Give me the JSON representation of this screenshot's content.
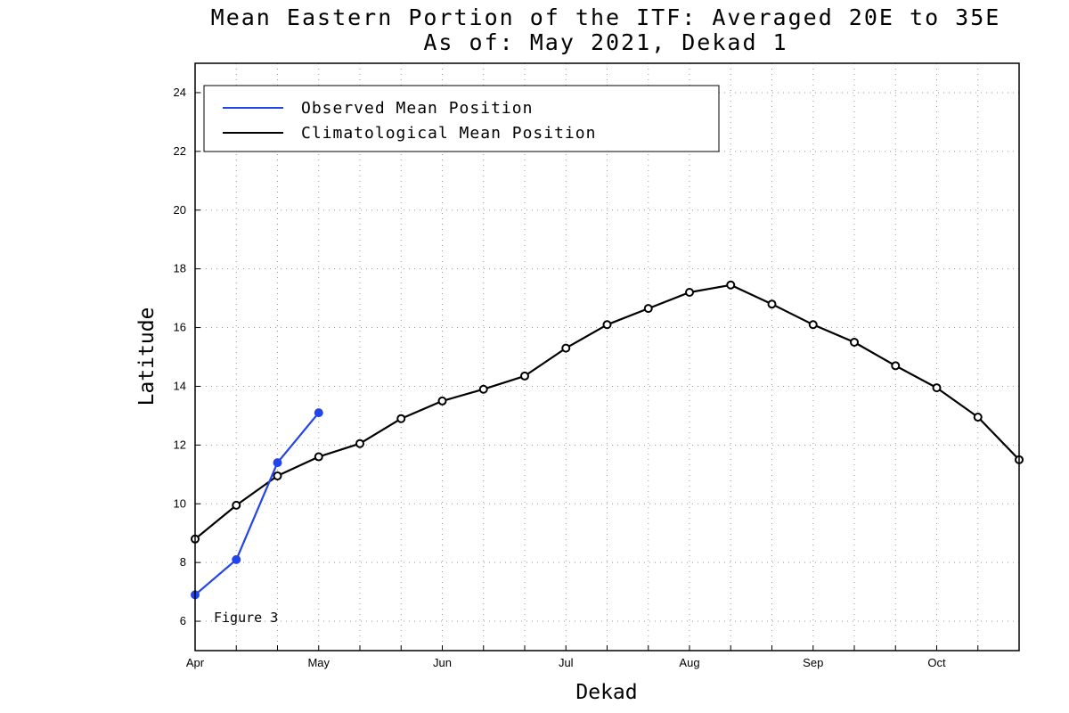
{
  "chart_data": {
    "type": "line",
    "title": "Mean Eastern Portion of the ITF: Averaged 20E to 35E",
    "subtitle": "As of: May 2021, Dekad 1",
    "xlabel": "Dekad",
    "ylabel": "Latitude",
    "annotation": "Figure 3",
    "x_tick_labels": [
      "Apr",
      "May",
      "Jun",
      "Jul",
      "Aug",
      "Sep",
      "Oct"
    ],
    "x_tick_label_index": [
      0,
      3,
      6,
      9,
      12,
      15,
      18
    ],
    "xlim": [
      0,
      20
    ],
    "ylim": [
      5,
      25
    ],
    "y_ticks": [
      6,
      8,
      10,
      12,
      14,
      16,
      18,
      20,
      22,
      24
    ],
    "grid": true,
    "legend_position": "top-left",
    "series": [
      {
        "name": "Observed Mean Position",
        "color": "#2244ee",
        "marker": "filled-circle",
        "x": [
          0,
          1,
          2,
          3
        ],
        "values": [
          6.9,
          8.1,
          11.4,
          13.1
        ]
      },
      {
        "name": "Climatological Mean Position",
        "color": "#000000",
        "marker": "open-circle",
        "x": [
          0,
          1,
          2,
          3,
          4,
          5,
          6,
          7,
          8,
          9,
          10,
          11,
          12,
          13,
          14,
          15,
          16,
          17,
          18,
          19,
          20
        ],
        "values": [
          8.8,
          9.95,
          10.95,
          11.6,
          12.05,
          12.9,
          13.5,
          13.9,
          14.35,
          15.3,
          16.1,
          16.65,
          17.2,
          17.45,
          16.8,
          16.1,
          15.5,
          14.7,
          13.95,
          12.95,
          11.5
        ]
      }
    ]
  }
}
